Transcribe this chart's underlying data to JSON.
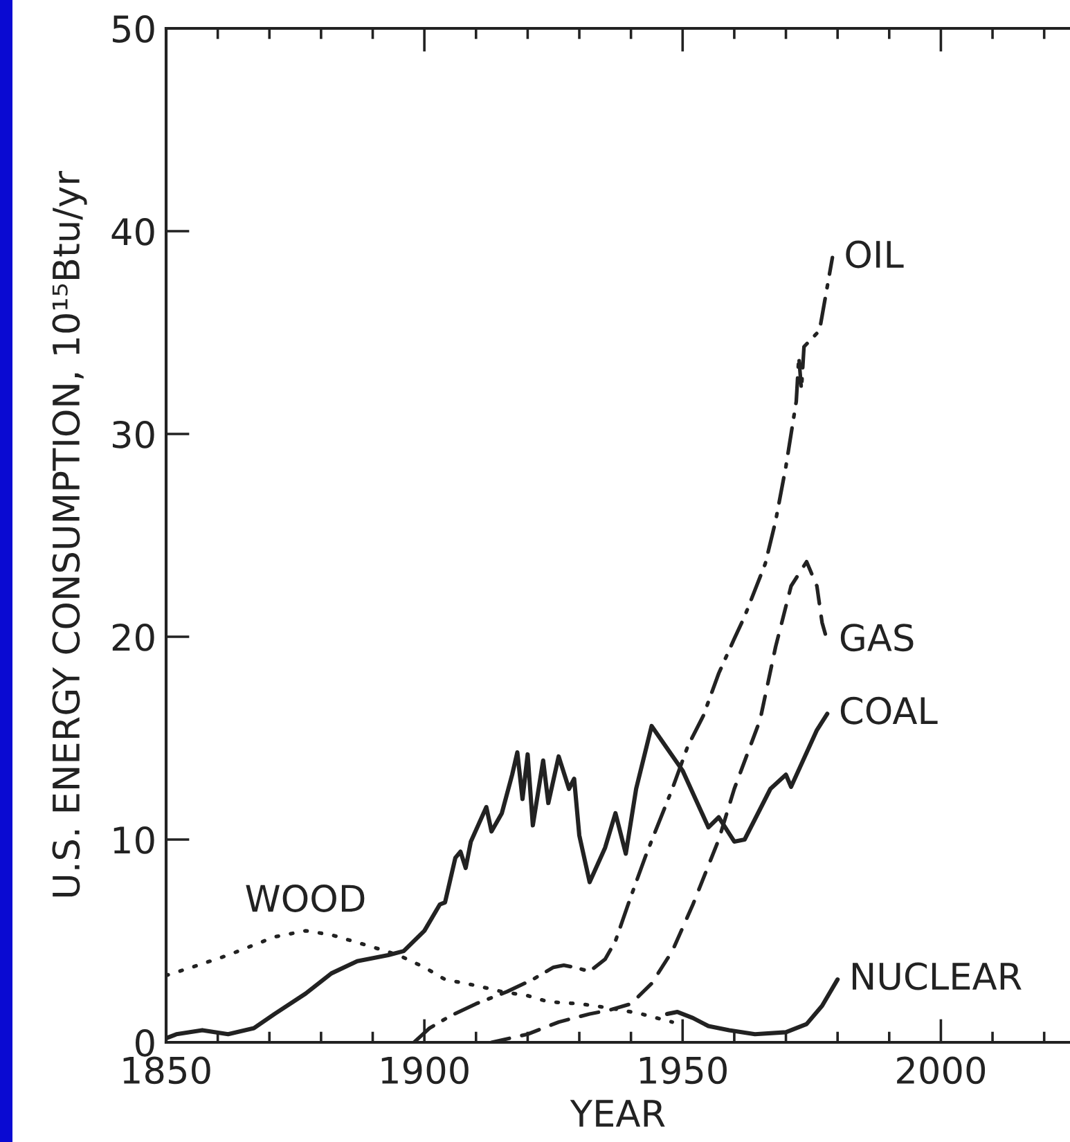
{
  "chart_data": {
    "type": "line",
    "xlabel": "YEAR",
    "ylabel": "U.S. ENERGY CONSUMPTION, 10¹⁵Btu/yr",
    "xlim": [
      1850,
      2025
    ],
    "xticks": [
      1850,
      {
        "value": 1860,
        "label": null
      },
      {
        "value": 1870,
        "label": null
      },
      {
        "value": 1880,
        "label": null
      },
      {
        "value": 1890,
        "label": null
      },
      1900,
      {
        "value": 1910,
        "label": null
      },
      {
        "value": 1920,
        "label": null
      },
      {
        "value": 1930,
        "label": null
      },
      {
        "value": 1940,
        "label": null
      },
      1950,
      {
        "value": 1960,
        "label": null
      },
      {
        "value": 1970,
        "label": null
      },
      {
        "value": 1980,
        "label": null
      },
      {
        "value": 1990,
        "label": null
      },
      2000,
      {
        "value": 2010,
        "label": null
      },
      {
        "value": 2020,
        "label": null
      }
    ],
    "ylim": [
      0,
      50
    ],
    "yticks": [
      0,
      10,
      20,
      30,
      40,
      50
    ],
    "series": [
      {
        "name": "WOOD",
        "color": "#222222",
        "line_style": "dotted",
        "x": [
          1850,
          1855,
          1862,
          1867,
          1871,
          1877,
          1882,
          1886,
          1890,
          1895,
          1900,
          1904,
          1910,
          1915,
          1920,
          1924,
          1930,
          1933,
          1938,
          1942,
          1948
        ],
        "values": [
          3.3,
          3.7,
          4.3,
          4.8,
          5.2,
          5.5,
          5.3,
          5.0,
          4.7,
          4.3,
          3.7,
          3.1,
          2.8,
          2.5,
          2.3,
          2.0,
          1.9,
          1.8,
          1.6,
          1.4,
          1.0
        ]
      },
      {
        "name": "COAL",
        "color": "#222222",
        "line_style": "solid",
        "x": [
          1850,
          1852,
          1857,
          1862,
          1867,
          1871,
          1877,
          1882,
          1887,
          1893,
          1896,
          1900,
          1903,
          1904,
          1906,
          1907,
          1908,
          1909,
          1912,
          1913,
          1915,
          1917,
          1918,
          1919,
          1920,
          1921,
          1923,
          1924,
          1926,
          1928,
          1929,
          1930,
          1932,
          1935,
          1937,
          1939,
          1941,
          1944,
          1947,
          1950,
          1955,
          1957,
          1960,
          1962,
          1967,
          1970,
          1971,
          1976,
          1978
        ],
        "values": [
          0.2,
          0.4,
          0.6,
          0.4,
          0.7,
          1.4,
          2.4,
          3.4,
          4.0,
          4.3,
          4.5,
          5.5,
          6.8,
          6.9,
          9.1,
          9.4,
          8.6,
          9.9,
          11.6,
          10.4,
          11.3,
          13.2,
          14.3,
          12.0,
          14.2,
          10.7,
          13.9,
          11.8,
          14.1,
          12.5,
          13.0,
          10.2,
          7.9,
          9.6,
          11.3,
          9.3,
          12.5,
          15.6,
          14.5,
          13.4,
          10.6,
          11.1,
          9.9,
          10.0,
          12.5,
          13.2,
          12.6,
          15.4,
          16.2
        ]
      },
      {
        "name": "OIL",
        "color": "#222222",
        "line_style": "dashdot",
        "x": [
          1898,
          1901,
          1905,
          1910,
          1916,
          1921,
          1925,
          1927,
          1929,
          1932,
          1935,
          1937,
          1940,
          1943,
          1948,
          1951,
          1954,
          1957,
          1960,
          1962,
          1966,
          1968,
          1970,
          1972,
          1972.5,
          1973,
          1973.5,
          1976.5,
          1979
        ],
        "values": [
          0,
          0.7,
          1.3,
          1.9,
          2.5,
          3.1,
          3.7,
          3.8,
          3.7,
          3.5,
          4.1,
          5.0,
          7.2,
          9.3,
          12.5,
          14.6,
          16.1,
          18.2,
          19.9,
          21.0,
          23.6,
          25.7,
          28.4,
          31.6,
          33.8,
          32.2,
          34.3,
          35.1,
          38.7
        ]
      },
      {
        "name": "GAS",
        "color": "#222222",
        "line_style": "dashed",
        "x": [
          1913,
          1920,
          1926,
          1932,
          1936,
          1940,
          1944,
          1948,
          1952,
          1957,
          1960,
          1965,
          1968,
          1971,
          1974,
          1976,
          1977,
          1978
        ],
        "values": [
          0,
          0.4,
          1.0,
          1.4,
          1.6,
          1.9,
          2.9,
          4.5,
          6.8,
          10.0,
          12.5,
          15.9,
          19.5,
          22.5,
          23.7,
          22.5,
          20.7,
          19.8
        ]
      },
      {
        "name": "NUCLEAR",
        "color": "#222222",
        "line_style": "solid",
        "x": [
          1947,
          1949,
          1952,
          1955,
          1959,
          1964,
          1970,
          1974,
          1977,
          1980
        ],
        "values": [
          1.4,
          1.5,
          1.2,
          0.8,
          0.6,
          0.4,
          0.5,
          0.9,
          1.8,
          3.1
        ]
      }
    ]
  }
}
